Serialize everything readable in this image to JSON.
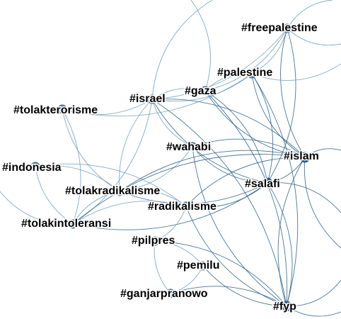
{
  "colors": {
    "edge_light": "#6f9cc0",
    "edge_dark": "#2c5f86",
    "node_fill": "#5a86b0",
    "node_fill_dark": "#245a84",
    "label": "#000000"
  },
  "nodes": [
    {
      "id": "freepalestine",
      "label": "#freepalestine"
    },
    {
      "id": "palestine",
      "label": "#palestine"
    },
    {
      "id": "gaza",
      "label": "#gaza"
    },
    {
      "id": "israel",
      "label": "#israel"
    },
    {
      "id": "tolakterorisme",
      "label": "#tolakterorisme"
    },
    {
      "id": "wahabi",
      "label": "#wahabi"
    },
    {
      "id": "islam",
      "label": "#islam"
    },
    {
      "id": "salafi",
      "label": "#salafi"
    },
    {
      "id": "indonesia",
      "label": "#indonesia"
    },
    {
      "id": "tolakradikalisme",
      "label": "#tolakradikalisme"
    },
    {
      "id": "radikalisme",
      "label": "#radikalisme"
    },
    {
      "id": "tolakintoleransi",
      "label": "#tolakintoleransi"
    },
    {
      "id": "pilpres",
      "label": "#pilpres"
    },
    {
      "id": "pemilu",
      "label": "#pemilu"
    },
    {
      "id": "ganjarpranowo",
      "label": "#ganjarpranowo"
    },
    {
      "id": "fyp",
      "label": "#fyp"
    }
  ],
  "edges": [
    [
      "israel",
      "palestine"
    ],
    [
      "israel",
      "gaza"
    ],
    [
      "israel",
      "freepalestine"
    ],
    [
      "israel",
      "tolakterorisme"
    ],
    [
      "israel",
      "tolakradikalisme"
    ],
    [
      "israel",
      "tolakintoleransi"
    ],
    [
      "israel",
      "salafi"
    ],
    [
      "israel",
      "islam"
    ],
    [
      "israel",
      "wahabi"
    ],
    [
      "gaza",
      "palestine"
    ],
    [
      "gaza",
      "freepalestine"
    ],
    [
      "gaza",
      "salafi"
    ],
    [
      "gaza",
      "islam"
    ],
    [
      "gaza",
      "fyp"
    ],
    [
      "palestine",
      "freepalestine"
    ],
    [
      "palestine",
      "salafi"
    ],
    [
      "palestine",
      "islam"
    ],
    [
      "palestine",
      "fyp"
    ],
    [
      "freepalestine",
      "islam"
    ],
    [
      "freepalestine",
      "salafi"
    ],
    [
      "tolakterorisme",
      "tolakradikalisme"
    ],
    [
      "tolakterorisme",
      "tolakintoleransi"
    ],
    [
      "tolakterorisme",
      "palestine"
    ],
    [
      "indonesia",
      "tolakradikalisme"
    ],
    [
      "indonesia",
      "tolakintoleransi"
    ],
    [
      "indonesia",
      "radikalisme"
    ],
    [
      "tolakradikalisme",
      "tolakintoleransi"
    ],
    [
      "tolakradikalisme",
      "radikalisme"
    ],
    [
      "tolakradikalisme",
      "salafi"
    ],
    [
      "tolakradikalisme",
      "islam"
    ],
    [
      "tolakradikalisme",
      "wahabi"
    ],
    [
      "tolakintoleransi",
      "radikalisme"
    ],
    [
      "tolakintoleransi",
      "salafi"
    ],
    [
      "tolakintoleransi",
      "islam"
    ],
    [
      "radikalisme",
      "salafi"
    ],
    [
      "radikalisme",
      "islam"
    ],
    [
      "radikalisme",
      "fyp"
    ],
    [
      "radikalisme",
      "pilpres"
    ],
    [
      "wahabi",
      "salafi"
    ],
    [
      "wahabi",
      "islam"
    ],
    [
      "salafi",
      "islam"
    ],
    [
      "salafi",
      "fyp"
    ],
    [
      "islam",
      "fyp"
    ],
    [
      "pilpres",
      "pemilu"
    ],
    [
      "pilpres",
      "ganjarpranowo"
    ],
    [
      "pilpres",
      "fyp"
    ],
    [
      "pemilu",
      "fyp"
    ],
    [
      "ganjarpranowo",
      "fyp"
    ],
    [
      "ganjarpranowo",
      "pemilu"
    ],
    [
      "israel",
      "fyp"
    ],
    [
      "wahabi",
      "fyp"
    ]
  ]
}
